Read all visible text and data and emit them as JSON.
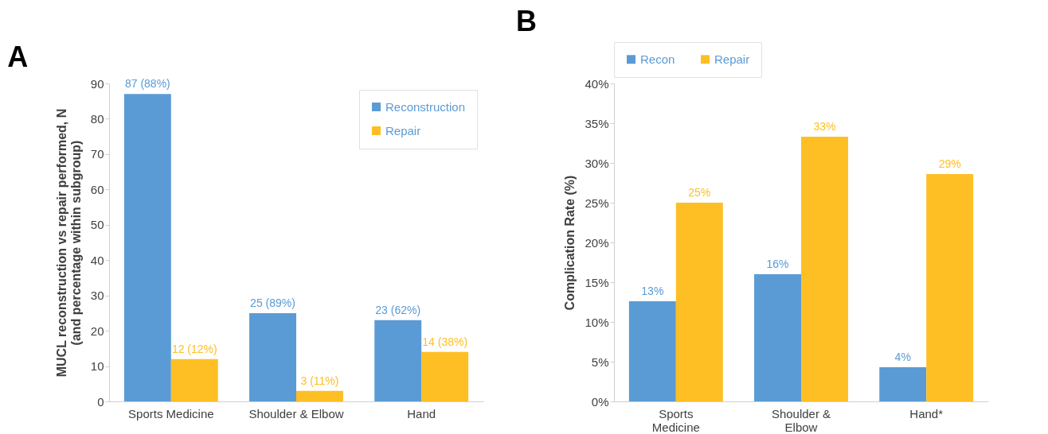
{
  "chart_data": [
    {
      "type": "bar",
      "title": "A",
      "ylabel": "MUCL reconstruction vs repair performed, N\n(and percentage within subgroup)",
      "categories": [
        "Sports Medicine",
        "Shoulder & Elbow",
        "Hand"
      ],
      "series": [
        {
          "name": "Reconstruction",
          "color": "#5b9bd5",
          "values": [
            87,
            25,
            23
          ],
          "value_labels": [
            "87 (88%)",
            "25 (89%)",
            "23 (62%)"
          ]
        },
        {
          "name": "Repair",
          "color": "#fdbf24",
          "values": [
            12,
            3,
            14
          ],
          "value_labels": [
            "12 (12%)",
            "3 (11%)",
            "14 (38%)"
          ]
        }
      ],
      "ylim": [
        0,
        90
      ],
      "yticks": [
        0,
        10,
        20,
        30,
        40,
        50,
        60,
        70,
        80,
        90
      ],
      "grid": false,
      "legend": "top right"
    },
    {
      "type": "bar",
      "title": "B",
      "ylabel": "Complication Rate (%)",
      "categories": [
        "Sports Medicine",
        "Shoulder & Elbow",
        "Hand*"
      ],
      "series": [
        {
          "name": "Recon",
          "color": "#5b9bd5",
          "values": [
            12.6,
            16,
            4.3
          ],
          "value_labels": [
            "13%",
            "16%",
            "4%"
          ]
        },
        {
          "name": "Repair",
          "color": "#fdbf24",
          "values": [
            25,
            33.3,
            28.6
          ],
          "value_labels": [
            "25%",
            "33%",
            "29%"
          ]
        }
      ],
      "ylim": [
        0,
        40
      ],
      "yticks": [
        {
          "value": 0,
          "label": "0%"
        },
        {
          "value": 5,
          "label": "5%"
        },
        {
          "value": 10,
          "label": "10%"
        },
        {
          "value": 15,
          "label": "15%"
        },
        {
          "value": 20,
          "label": "20%"
        },
        {
          "value": 25,
          "label": "25%"
        },
        {
          "value": 30,
          "label": "30%"
        },
        {
          "value": 35,
          "label": "35%"
        },
        {
          "value": 40,
          "label": "40%"
        }
      ],
      "grid": false,
      "legend": "top"
    }
  ]
}
